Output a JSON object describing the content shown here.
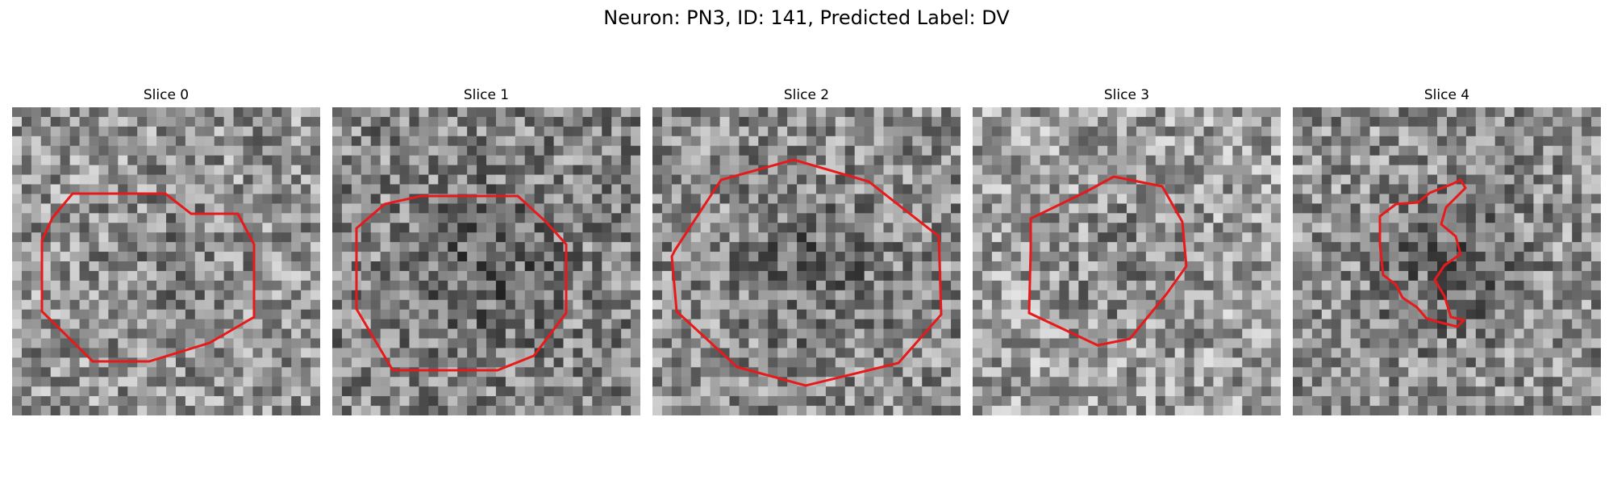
{
  "figure": {
    "title": "Neuron: PN3, ID: 141, Predicted Label: DV"
  },
  "panels": [
    {
      "title": "Slice 0",
      "seed": 11,
      "brightness": 0.58,
      "dark_center": 0.08
    },
    {
      "title": "Slice 1",
      "seed": 23,
      "brightness": 0.52,
      "dark_center": 0.16
    },
    {
      "title": "Slice 2",
      "seed": 37,
      "brightness": 0.55,
      "dark_center": 0.16
    },
    {
      "title": "Slice 3",
      "seed": 41,
      "brightness": 0.62,
      "dark_center": 0.12
    },
    {
      "title": "Slice 4",
      "seed": 53,
      "brightness": 0.56,
      "dark_center": 0.18
    }
  ],
  "colors": {
    "contour": "#e8191b"
  }
}
